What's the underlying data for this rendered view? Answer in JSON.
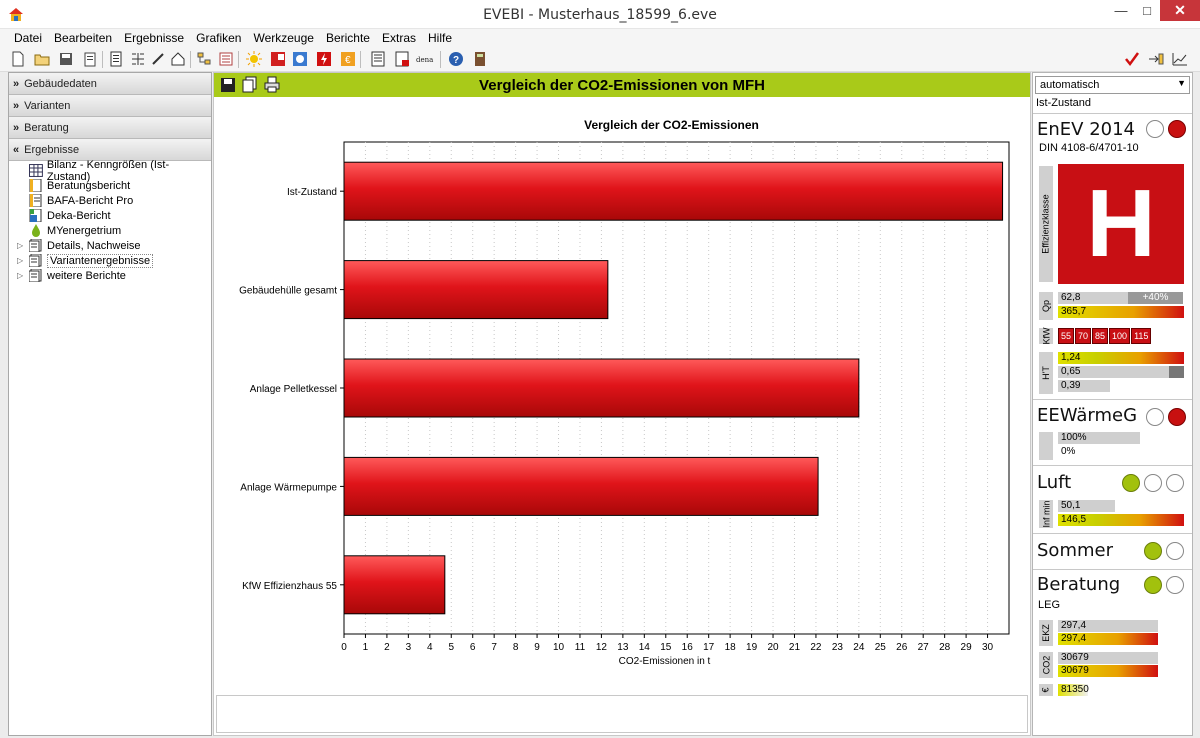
{
  "window": {
    "title": "EVEBI - Musterhaus_18599_6.eve",
    "minimize": "—",
    "maximize": "□",
    "close": "✕"
  },
  "menu": [
    "Datei",
    "Bearbeiten",
    "Ergebnisse",
    "Grafiken",
    "Werkzeuge",
    "Berichte",
    "Extras",
    "Hilfe"
  ],
  "sidebar": {
    "sections": [
      "Gebäudedaten",
      "Varianten",
      "Beratung",
      "Ergebnisse"
    ],
    "tree": [
      {
        "label": "Bilanz - Kenngrößen (Ist-Zustand)",
        "icon": "table-icon"
      },
      {
        "label": "Beratungsbericht",
        "icon": "report-icon"
      },
      {
        "label": "BAFA-Bericht Pro",
        "icon": "bafa-report-icon"
      },
      {
        "label": "Deka-Bericht",
        "icon": "deka-report-icon"
      },
      {
        "label": "MYenergetrium",
        "icon": "drop-icon"
      },
      {
        "label": "Details, Nachweise",
        "icon": "folder-docs-icon"
      },
      {
        "label": "Variantenergebnisse",
        "icon": "folder-docs-icon"
      },
      {
        "label": "weitere Berichte",
        "icon": "folder-docs-icon"
      }
    ]
  },
  "main": {
    "header_title": "Vergleich der CO2-Emissionen von MFH"
  },
  "chart_data": {
    "type": "bar",
    "orientation": "horizontal",
    "title": "Vergleich der CO2-Emissionen",
    "xlabel": "CO2-Emissionen in t",
    "ylabel": "",
    "categories": [
      "Ist-Zustand",
      "Gebäudehülle gesamt",
      "Anlage Pelletkessel",
      "Anlage Wärmepumpe",
      "KfW Effizienzhaus 55"
    ],
    "values": [
      30.7,
      12.3,
      24.0,
      22.1,
      4.7
    ],
    "xlim": [
      0,
      31
    ],
    "xticks": [
      0,
      1,
      2,
      3,
      4,
      5,
      6,
      7,
      8,
      9,
      10,
      11,
      12,
      13,
      14,
      15,
      16,
      17,
      18,
      19,
      20,
      21,
      22,
      23,
      24,
      25,
      26,
      27,
      28,
      29,
      30
    ],
    "grid": "vertical dotted",
    "bar_color": "#e0141a"
  },
  "right": {
    "dropdown": "automatisch",
    "state": "Ist-Zustand",
    "enev": {
      "title": "EnEV 2014",
      "standard": "DIN 4108-6/4701-10",
      "class_label": "Effizienzklasse",
      "class": "H"
    },
    "qp": {
      "label": "Qp",
      "value1": "62,8",
      "badge": "+40%",
      "value2": "365,7"
    },
    "kfw": {
      "label": "KfW",
      "levels": [
        "55",
        "70",
        "85",
        "100",
        "115"
      ]
    },
    "ht": {
      "label": "H'T",
      "v1": "1,24",
      "v2": "0,65",
      "v3": "0,39"
    },
    "eew": {
      "title": "EEWärmeG",
      "v1": "100%",
      "v2": "0%"
    },
    "luft": {
      "title": "Luft",
      "label": "Inf min",
      "v1": "50,1",
      "v2": "146,5"
    },
    "sommer": {
      "title": "Sommer"
    },
    "beratung": {
      "title": "Beratung",
      "sub": "LEG",
      "ekz_label": "EKZ",
      "ekz1": "297,4",
      "ekz2": "297,4",
      "co2_label": "CO2",
      "co21": "30679",
      "co22": "30679",
      "eur_label": "€",
      "eur": "81350"
    }
  }
}
